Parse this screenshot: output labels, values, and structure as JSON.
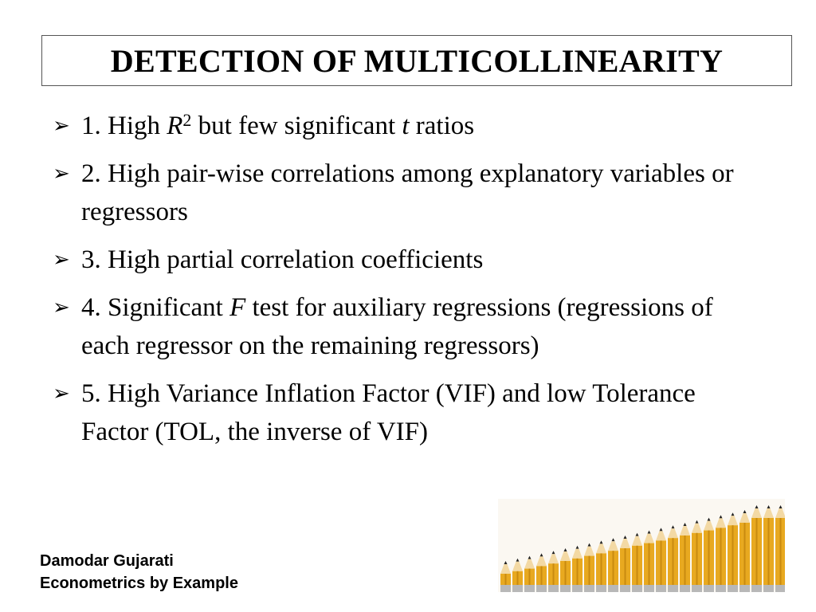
{
  "title": "DETECTION OF MULTICOLLINEARITY",
  "bullets": [
    {
      "parts": [
        {
          "t": "1. High "
        },
        {
          "t": "R",
          "i": true
        },
        {
          "t": "2",
          "sup": true
        },
        {
          "t": " but few significant "
        },
        {
          "t": "t",
          "i": true
        },
        {
          "t": " ratios"
        }
      ]
    },
    {
      "parts": [
        {
          "t": "2. High pair-wise correlations among explanatory variables or regressors"
        }
      ]
    },
    {
      "parts": [
        {
          "t": "3. High partial correlation coefficients"
        }
      ]
    },
    {
      "parts": [
        {
          "t": "4. Significant "
        },
        {
          "t": "F",
          "i": true
        },
        {
          "t": " test for auxiliary regressions (regressions of each regressor on the remaining regressors)"
        }
      ]
    },
    {
      "parts": [
        {
          "t": "5. High Variance Inflation Factor (VIF) and low Tolerance Factor (TOL, the inverse of VIF)"
        }
      ]
    }
  ],
  "credit": {
    "line1": "Damodar Gujarati",
    "line2": "Econometrics by Example"
  },
  "colors": {
    "pencil_body": "#e8a920",
    "pencil_wood": "#f3d9a4",
    "pencil_lead": "#222222",
    "pencil_band": "#b8b8b8",
    "pencil_eraser": "#c9c9c9"
  }
}
